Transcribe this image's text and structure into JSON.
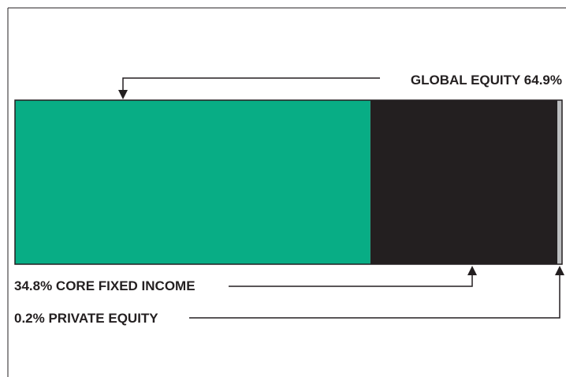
{
  "chart_data": {
    "type": "bar",
    "orientation": "horizontal-stacked",
    "segments": [
      {
        "name": "GLOBAL EQUITY",
        "value": 64.9,
        "label": "GLOBAL EQUITY 64.9%",
        "color": "#08ad85"
      },
      {
        "name": "CORE FIXED INCOME",
        "value": 34.8,
        "label": "34.8% CORE FIXED INCOME",
        "color": "#231f20"
      },
      {
        "name": "PRIVATE EQUITY",
        "value": 0.2,
        "label": "0.2% PRIVATE EQUITY",
        "color": "#bcbec0"
      }
    ],
    "unit": "%",
    "grid": false,
    "legend": "none"
  }
}
